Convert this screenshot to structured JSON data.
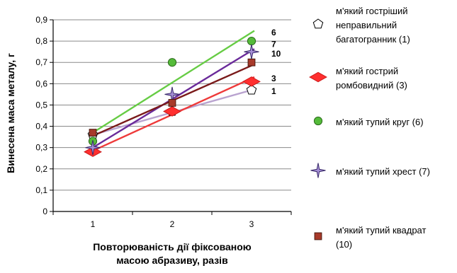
{
  "chart_data": {
    "type": "scatter",
    "xlabel": [
      "Повторюваність дії фіксованою",
      "масою абразиву, разів"
    ],
    "ylabel": "Винесена маса металу, г",
    "x": [
      1,
      2,
      3
    ],
    "xlim": [
      0.5,
      3.5
    ],
    "ylim": [
      0,
      0.9
    ],
    "yticks": [
      "0",
      "0,1",
      "0,2",
      "0,3",
      "0,4",
      "0,5",
      "0,6",
      "0,7",
      "0,8",
      "0,9"
    ],
    "xticks": [
      "1",
      "2",
      "3"
    ],
    "grid": "horizontal",
    "legend_position": "right",
    "series": [
      {
        "id": "s1",
        "name": [
          "м'який гостріший",
          "неправильний",
          "багатогранник (1)"
        ],
        "marker": "pentagon",
        "color": "#ffffff",
        "points": [
          0.36,
          0.47,
          0.57
        ],
        "trend": [
          0.36,
          0.47,
          0.57
        ],
        "trend_color": "#b9a3cf",
        "end_label": "1"
      },
      {
        "id": "s3",
        "name": [
          "м'який гострий",
          "ромбовидний (3)"
        ],
        "marker": "diamond",
        "color": "#ff2f2f",
        "points": [
          0.28,
          0.47,
          0.61
        ],
        "trend": [
          0.285,
          0.455,
          0.625
        ],
        "trend_color": "#ee3a3a",
        "end_label": "3"
      },
      {
        "id": "s6",
        "name": [
          "м'який тупий круг (6)"
        ],
        "marker": "circle",
        "color": "#55bb3a",
        "points": [
          0.33,
          0.7,
          0.8
        ],
        "trend": [
          0.37,
          0.605,
          0.84
        ],
        "trend_color": "#66cc44",
        "end_label": "6"
      },
      {
        "id": "s7",
        "name": [
          "м'який тупий хрест (7)"
        ],
        "marker": "star4",
        "color": "#a58fd6",
        "points": [
          0.3,
          0.55,
          0.75
        ],
        "trend": [
          0.3,
          0.525,
          0.755
        ],
        "trend_color": "#6a2a9a",
        "end_label": "7"
      },
      {
        "id": "s10",
        "name": [
          "м'який тупий квадрат",
          "(10)"
        ],
        "marker": "square",
        "color": "#a83a2a",
        "points": [
          0.37,
          0.51,
          0.7
        ],
        "trend": [
          0.355,
          0.52,
          0.685
        ],
        "trend_color": "#7a1a1a",
        "end_label": "10"
      }
    ]
  }
}
